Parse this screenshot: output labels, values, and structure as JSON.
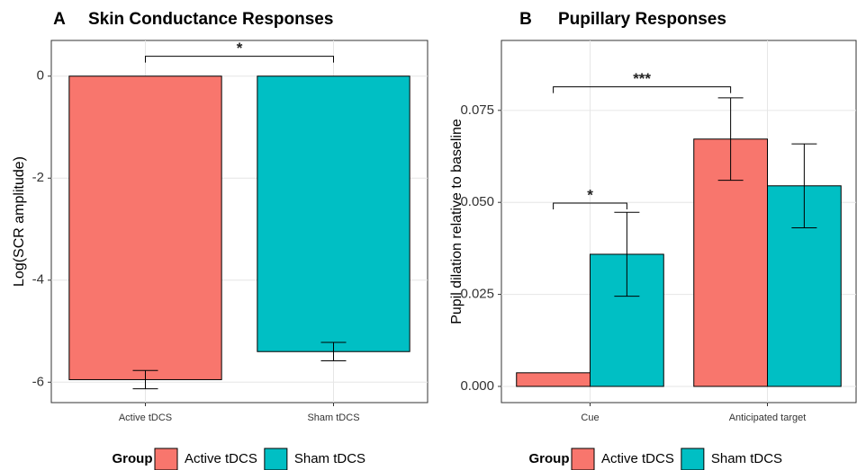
{
  "chart_data": [
    {
      "type": "bar",
      "tag": "A",
      "title": "Skin Conductance Responses",
      "y_label": "Log(SCR amplitude)",
      "categories": [
        "Active tDCS",
        "Sham tDCS"
      ],
      "position": "identity",
      "series": [
        {
          "name": "Active tDCS",
          "color": "#F8766D",
          "values": [
            -5.95,
            null
          ],
          "errors": [
            0.18,
            null
          ]
        },
        {
          "name": "Sham tDCS",
          "color": "#00BFC4",
          "values": [
            null,
            -5.4
          ],
          "errors": [
            null,
            0.18
          ]
        }
      ],
      "ylim": [
        -6.4,
        0.7
      ],
      "yticks": [
        0,
        -2,
        -4,
        -6
      ],
      "grid": true,
      "legend_title": "Group",
      "legend": "bottom",
      "annotations": [
        {
          "text": "*",
          "y": 0.39,
          "from": [
            0,
            0
          ],
          "to": [
            1,
            1
          ]
        }
      ]
    },
    {
      "type": "bar",
      "tag": "B",
      "title": "Pupillary Responses",
      "y_label": "Pupil dilation relative to baseline",
      "categories": [
        "Cue",
        "Anticipated target"
      ],
      "position": "dodge",
      "series": [
        {
          "name": "Active tDCS",
          "color": "#F8766D",
          "values": [
            0.0037,
            0.0672
          ],
          "errors": [
            null,
            0.0112
          ]
        },
        {
          "name": "Sham tDCS",
          "color": "#00BFC4",
          "values": [
            0.0359,
            0.0545
          ],
          "errors": [
            0.0114,
            0.0114
          ]
        }
      ],
      "ylim": [
        -0.0044,
        0.094
      ],
      "yticks": [
        {
          "value": 0,
          "label": "0.000"
        },
        {
          "value": 0.025,
          "label": "0.025"
        },
        {
          "value": 0.05,
          "label": "0.050"
        },
        {
          "value": 0.075,
          "label": "0.075"
        }
      ],
      "grid": true,
      "legend_title": "Group",
      "legend": "bottom",
      "annotations": [
        {
          "text": "***",
          "y": 0.0814,
          "from": [
            0,
            0
          ],
          "to": [
            0,
            1
          ]
        },
        {
          "text": "*",
          "y": 0.0498,
          "from": [
            0,
            0
          ],
          "to": [
            1,
            0
          ]
        }
      ]
    }
  ]
}
